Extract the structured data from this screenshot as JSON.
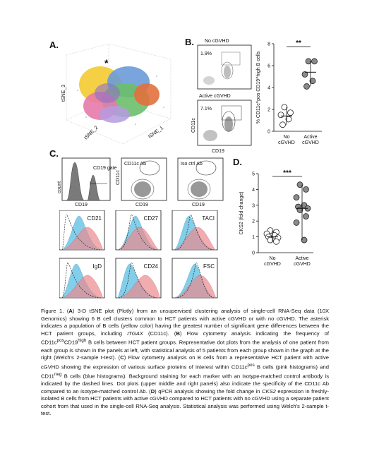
{
  "panels": {
    "A": {
      "label": "A.",
      "axes": [
        "tSNE_3",
        "tSNE_2",
        "tSNE_1"
      ],
      "marker": "*"
    },
    "B": {
      "label": "B.",
      "groups": [
        {
          "title": "No cGVHD",
          "percent": "1.9%"
        },
        {
          "title": "Active cGVHD",
          "percent": "7.1%"
        }
      ],
      "xaxis": "CD19",
      "yaxis": "CD11c",
      "sig": "**"
    },
    "C": {
      "label": "C.",
      "top_plots": [
        {
          "gate_label": "CD19 gate",
          "x": "CD19",
          "y": "count"
        },
        {
          "gate_label": "CD11c Ab",
          "x": "CD19",
          "y": "CD11c"
        },
        {
          "gate_label": "Iso ctrl Ab",
          "x": "CD19",
          "y": ""
        }
      ],
      "histograms": [
        "CD21",
        "CD27",
        "TACI",
        "IgD",
        "CD24",
        "FSC"
      ]
    },
    "D": {
      "label": "D.",
      "sig": "***"
    }
  },
  "chart_data": [
    {
      "type": "scatter",
      "panel": "B",
      "ylabel": "% CD11c^pos CD19^high B cells",
      "categories": [
        "No cGVHD",
        "Active cGVHD"
      ],
      "ylim": [
        0,
        8
      ],
      "yticks": [
        0,
        2,
        4,
        6,
        8
      ],
      "series": [
        {
          "values": [
            2.2,
            1.7,
            1.5,
            1.1,
            0.6
          ]
        },
        {
          "values": [
            6.4,
            6.4,
            5.2,
            4.6,
            4.1
          ]
        }
      ],
      "means": [
        1.4,
        5.4
      ]
    },
    {
      "type": "scatter",
      "panel": "D",
      "ylabel": "CKS2 (fold change)",
      "categories": [
        "No cGVHD",
        "Active cGVHD"
      ],
      "ylim": [
        0,
        5
      ],
      "yticks": [
        0,
        1,
        2,
        3,
        4,
        5
      ],
      "series": [
        {
          "values": [
            1.4,
            1.3,
            1.2,
            1.1,
            1.0,
            0.95,
            0.8,
            0.7
          ]
        },
        {
          "values": [
            4.3,
            4.0,
            3.5,
            3.0,
            2.9,
            2.8,
            2.7,
            2.3,
            1.9,
            0.8
          ]
        }
      ],
      "medians": [
        1.0,
        2.8
      ]
    }
  ],
  "caption": {
    "p1": "Figure 1. (",
    "A": "A",
    "p2": ") 3-D tSNE plot (Plotly) from an unsupervised clustering analysis of single-cell RNA-Seq data (10X Genomics) showing 6 B cell clusters common to HCT patients with active cGVHD or with no cGVHD. The asterisk indicates a population of B cells (yellow color) having the greatest number of significant gene differences between the HCT patient groups, including ",
    "gene1": "ITGAX",
    "p3": " (CD11c). (",
    "B": "B",
    "p4": ") Flow cytometry analysis indicating the frequency of CD11c",
    "sup1": "pos",
    "p5": "CD19",
    "sup2": "high",
    "p6": " B cells between HCT patient groups. Representative dot plots from the analysis of one patient from each group is shown in the panels at left, with statistical analysis of 5 patients from each group shown in the graph at the right (Welch's 2-sample t-test). (",
    "C": "C",
    "p7": ") Flow cytometry analysis on B cells from a representative HCT patient with active cGVHD showing the expression of various surface proteins of interest within CD11c",
    "sup3": "pos",
    "p8": " B cells (pink histograms) and CD11",
    "sup4": "neg",
    "p9": " B cells (blue histograms). Background staining for each marker with an isotype-matched control antibody is indicated by the dashed lines. Dot plots (upper middle and right panels) also indicate the specificity of the CD11c Ab compared to an isotype-matched control Ab. (",
    "D": "D",
    "p10": ") qPCR analysis showing the fold change in ",
    "gene2": "CKS2",
    "p11": " expression in freshly-isolated B cells from HCT patients with active cGVHD compared to HCT patients with no cGVHD using a separate patient cohort from that used in the single-cell RNA-Seq analysis. Statistical analysis was performed using Welch's 2-sample t-test."
  }
}
